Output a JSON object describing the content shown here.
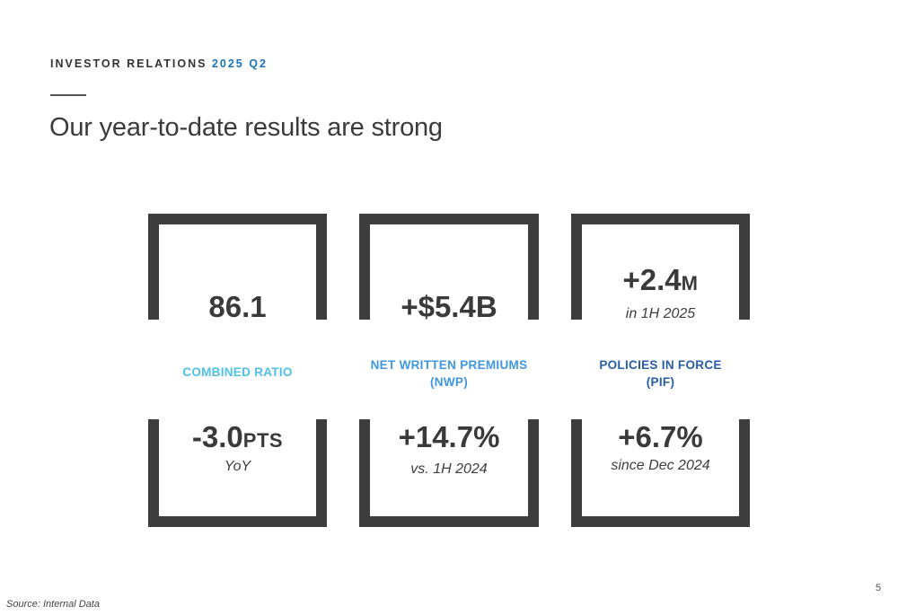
{
  "header": {
    "eyebrow_main": "INVESTOR RELATIONS",
    "eyebrow_period": "2025 Q2",
    "title": "Our year-to-date results are strong"
  },
  "metrics": [
    {
      "label_line1": "COMBINED RATIO",
      "label_line2": "",
      "color": "#4fc0e6",
      "top_value": "86.1",
      "top_unit": "",
      "top_note": "",
      "bottom_value": "-3.0",
      "bottom_unit": "PTS",
      "bottom_note": "YoY"
    },
    {
      "label_line1": "NET WRITTEN PREMIUMS",
      "label_line2": "(NWP)",
      "color": "#3f97e3",
      "top_value": "+$5.4B",
      "top_unit": "",
      "top_note": "",
      "bottom_value": "+14.7%",
      "bottom_unit": "",
      "bottom_note": "vs. 1H 2024"
    },
    {
      "label_line1": "POLICIES IN FORCE",
      "label_line2": "(PIF)",
      "color": "#275ea6",
      "top_value": "+2.4",
      "top_unit": "M",
      "top_note": "in 1H 2025",
      "bottom_value": "+6.7%",
      "bottom_unit": "",
      "bottom_note": "since Dec 2024"
    }
  ],
  "footer": {
    "source": "Source: Internal Data",
    "page_number": "5"
  }
}
